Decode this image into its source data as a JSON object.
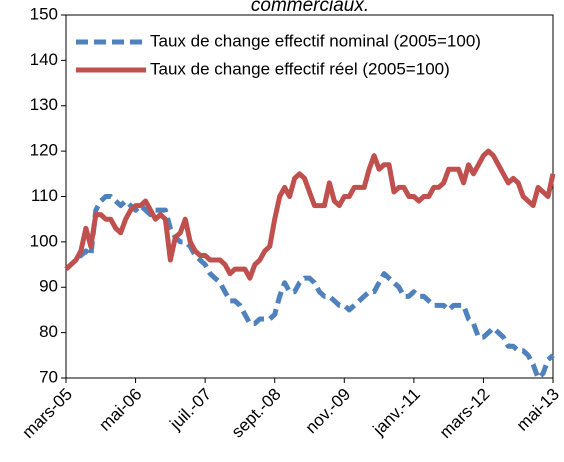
{
  "chart_data": {
    "type": "line",
    "title": "commerciaux.",
    "categories": [
      "mars-05",
      null,
      null,
      null,
      null,
      null,
      null,
      null,
      null,
      null,
      null,
      null,
      null,
      null,
      "mai-06",
      null,
      null,
      null,
      null,
      null,
      null,
      null,
      null,
      null,
      null,
      null,
      null,
      null,
      "juil.-07",
      null,
      null,
      null,
      null,
      null,
      null,
      null,
      null,
      null,
      null,
      null,
      null,
      null,
      "sept.-08",
      null,
      null,
      null,
      null,
      null,
      null,
      null,
      null,
      null,
      null,
      null,
      null,
      null,
      "nov.-09",
      null,
      null,
      null,
      null,
      null,
      null,
      null,
      null,
      null,
      null,
      null,
      null,
      null,
      "janv.-11",
      null,
      null,
      null,
      null,
      null,
      null,
      null,
      null,
      null,
      null,
      null,
      null,
      null,
      "mars-12",
      null,
      null,
      null,
      null,
      null,
      null,
      null,
      null,
      null,
      null,
      null,
      null,
      null,
      "mai-13"
    ],
    "series": [
      {
        "name": "Taux de change effectif nominal (2005=100)",
        "color": "#4f81bd",
        "dashed": true,
        "values": [
          94,
          95,
          96,
          97,
          98,
          97,
          107,
          109,
          110,
          110,
          109,
          108,
          109,
          108,
          107,
          108,
          107,
          106,
          107,
          107,
          107,
          103,
          101,
          100,
          100,
          99,
          97,
          96,
          95,
          93,
          92,
          91,
          89,
          87,
          87,
          86,
          84,
          82,
          82,
          83,
          83,
          83,
          84,
          88,
          91,
          89,
          89,
          91,
          92,
          92,
          91,
          89,
          88,
          88,
          87,
          86,
          86,
          85,
          86,
          87,
          88,
          89,
          89,
          91,
          93,
          92,
          91,
          90,
          88,
          88,
          89,
          88,
          88,
          87,
          86,
          86,
          86,
          85,
          86,
          86,
          86,
          83,
          82,
          79,
          79,
          80,
          81,
          80,
          79,
          77,
          77,
          76,
          76,
          75,
          73,
          70,
          71,
          74,
          75
        ]
      },
      {
        "name": "Taux de change effectif réel (2005=100)",
        "color": "#c0504d",
        "dashed": false,
        "values": [
          94,
          95,
          96,
          98,
          103,
          99,
          106,
          106,
          105,
          105,
          103,
          102,
          105,
          107,
          108,
          108,
          109,
          107,
          105,
          106,
          105,
          96,
          101,
          102,
          105,
          100,
          98,
          97,
          97,
          96,
          96,
          96,
          95,
          93,
          94,
          94,
          94,
          92,
          95,
          96,
          98,
          99,
          105,
          110,
          112,
          110,
          114,
          115,
          114,
          111,
          108,
          108,
          108,
          113,
          109,
          108,
          110,
          110,
          112,
          112,
          112,
          116,
          119,
          116,
          117,
          117,
          111,
          112,
          112,
          110,
          110,
          109,
          110,
          110,
          112,
          112,
          113,
          116,
          116,
          116,
          113,
          117,
          115,
          117,
          119,
          120,
          119,
          117,
          115,
          113,
          114,
          113,
          110,
          109,
          108,
          112,
          111,
          110,
          115
        ]
      }
    ],
    "ylim": [
      70,
      150
    ],
    "yticks": [
      70,
      80,
      90,
      100,
      110,
      120,
      130,
      140,
      150
    ],
    "grid": false
  }
}
